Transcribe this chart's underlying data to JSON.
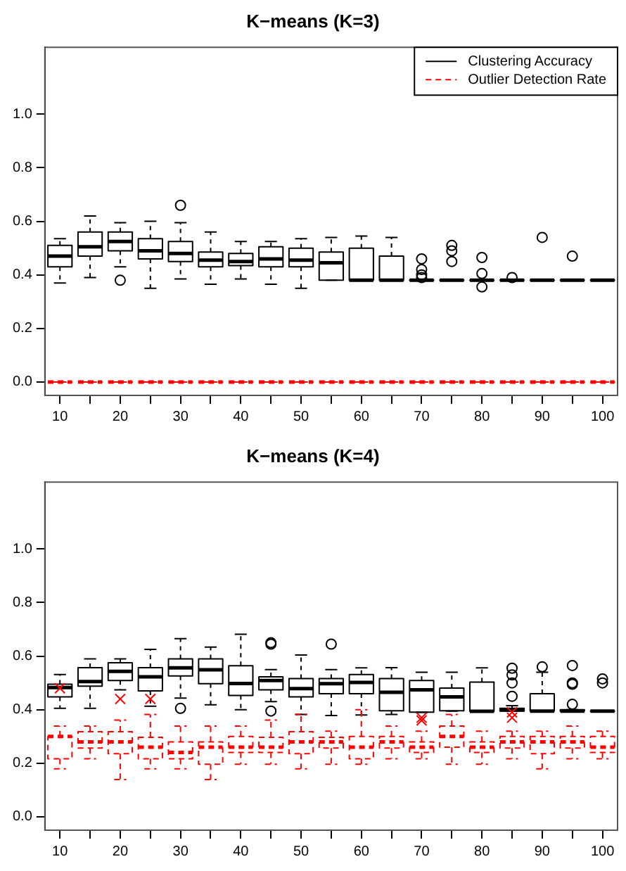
{
  "chart_data": [
    {
      "type": "box",
      "title": "K−means (K=3)",
      "categories": [
        "10",
        null,
        "20",
        null,
        "30",
        null,
        "40",
        null,
        "50",
        null,
        "60",
        null,
        "70",
        null,
        "80",
        null,
        "90",
        null,
        "100"
      ],
      "ylim": [
        -0.05,
        1.25
      ],
      "yticks": [
        {
          "value": 0,
          "label": "0.0"
        },
        {
          "value": 0.2,
          "label": "0.2"
        },
        {
          "value": 0.4,
          "label": "0.4"
        },
        {
          "value": 0.6,
          "label": "0.6"
        },
        {
          "value": 0.8,
          "label": "0.8"
        },
        {
          "value": 1,
          "label": "1.0"
        }
      ],
      "legend": "top right",
      "series": [
        {
          "name": "Clustering Accuracy",
          "color": "#000000",
          "line_style": "solid",
          "marker": "circle",
          "boxes": [
            {
              "low": 0.37,
              "q1": 0.43,
              "median": 0.47,
              "q3": 0.51,
              "high": 0.535
            },
            {
              "low": 0.39,
              "q1": 0.47,
              "median": 0.505,
              "q3": 0.56,
              "high": 0.62
            },
            {
              "low": 0.43,
              "q1": 0.49,
              "median": 0.525,
              "q3": 0.56,
              "high": 0.595,
              "outliers": [
                0.38
              ]
            },
            {
              "low": 0.35,
              "q1": 0.46,
              "median": 0.49,
              "q3": 0.535,
              "high": 0.6
            },
            {
              "low": 0.385,
              "q1": 0.45,
              "median": 0.48,
              "q3": 0.525,
              "high": 0.595,
              "outliers": [
                0.66
              ]
            },
            {
              "low": 0.365,
              "q1": 0.43,
              "median": 0.455,
              "q3": 0.485,
              "high": 0.56
            },
            {
              "low": 0.385,
              "q1": 0.435,
              "median": 0.45,
              "q3": 0.48,
              "high": 0.525
            },
            {
              "low": 0.365,
              "q1": 0.43,
              "median": 0.46,
              "q3": 0.505,
              "high": 0.525
            },
            {
              "low": 0.35,
              "q1": 0.43,
              "median": 0.455,
              "q3": 0.5,
              "high": 0.535
            },
            {
              "low": 0.38,
              "q1": 0.38,
              "median": 0.445,
              "q3": 0.485,
              "high": 0.54
            },
            {
              "low": 0.38,
              "q1": 0.38,
              "median": 0.38,
              "q3": 0.5,
              "high": 0.545
            },
            {
              "low": 0.38,
              "q1": 0.38,
              "median": 0.38,
              "q3": 0.47,
              "high": 0.54
            },
            {
              "low": 0.38,
              "q1": 0.38,
              "median": 0.38,
              "q3": 0.38,
              "high": 0.38,
              "outliers": [
                0.46,
                0.42,
                0.4,
                0.39
              ]
            },
            {
              "low": 0.38,
              "q1": 0.38,
              "median": 0.38,
              "q3": 0.38,
              "high": 0.38,
              "outliers": [
                0.51,
                0.49,
                0.45
              ]
            },
            {
              "low": 0.38,
              "q1": 0.38,
              "median": 0.38,
              "q3": 0.38,
              "high": 0.38,
              "outliers": [
                0.465,
                0.405,
                0.355
              ]
            },
            {
              "low": 0.38,
              "q1": 0.38,
              "median": 0.38,
              "q3": 0.38,
              "high": 0.38,
              "outliers": [
                0.39
              ]
            },
            {
              "low": 0.38,
              "q1": 0.38,
              "median": 0.38,
              "q3": 0.38,
              "high": 0.38,
              "outliers": [
                0.54
              ]
            },
            {
              "low": 0.38,
              "q1": 0.38,
              "median": 0.38,
              "q3": 0.38,
              "high": 0.38,
              "outliers": [
                0.47
              ]
            },
            {
              "low": 0.38,
              "q1": 0.38,
              "median": 0.38,
              "q3": 0.38,
              "high": 0.38
            }
          ]
        },
        {
          "name": "Outlier Detection Rate",
          "color": "#ff0000",
          "line_style": "dashed",
          "boxes": [
            {
              "low": 0,
              "q1": 0,
              "median": 0,
              "q3": 0,
              "high": 0
            },
            {
              "low": 0,
              "q1": 0,
              "median": 0,
              "q3": 0,
              "high": 0
            },
            {
              "low": 0,
              "q1": 0,
              "median": 0,
              "q3": 0,
              "high": 0
            },
            {
              "low": 0,
              "q1": 0,
              "median": 0,
              "q3": 0,
              "high": 0
            },
            {
              "low": 0,
              "q1": 0,
              "median": 0,
              "q3": 0,
              "high": 0
            },
            {
              "low": 0,
              "q1": 0,
              "median": 0,
              "q3": 0,
              "high": 0
            },
            {
              "low": 0,
              "q1": 0,
              "median": 0,
              "q3": 0,
              "high": 0
            },
            {
              "low": 0,
              "q1": 0,
              "median": 0,
              "q3": 0,
              "high": 0
            },
            {
              "low": 0,
              "q1": 0,
              "median": 0,
              "q3": 0,
              "high": 0
            },
            {
              "low": 0,
              "q1": 0,
              "median": 0,
              "q3": 0,
              "high": 0
            },
            {
              "low": 0,
              "q1": 0,
              "median": 0,
              "q3": 0,
              "high": 0
            },
            {
              "low": 0,
              "q1": 0,
              "median": 0,
              "q3": 0,
              "high": 0
            },
            {
              "low": 0,
              "q1": 0,
              "median": 0,
              "q3": 0,
              "high": 0
            },
            {
              "low": 0,
              "q1": 0,
              "median": 0,
              "q3": 0,
              "high": 0
            },
            {
              "low": 0,
              "q1": 0,
              "median": 0,
              "q3": 0,
              "high": 0
            },
            {
              "low": 0,
              "q1": 0,
              "median": 0,
              "q3": 0,
              "high": 0
            },
            {
              "low": 0,
              "q1": 0,
              "median": 0,
              "q3": 0,
              "high": 0
            },
            {
              "low": 0,
              "q1": 0,
              "median": 0,
              "q3": 0,
              "high": 0
            },
            {
              "low": 0,
              "q1": 0,
              "median": 0,
              "q3": 0,
              "high": 0
            }
          ]
        }
      ]
    },
    {
      "type": "box",
      "title": "K−means (K=4)",
      "categories": [
        "10",
        null,
        "20",
        null,
        "30",
        null,
        "40",
        null,
        "50",
        null,
        "60",
        null,
        "70",
        null,
        "80",
        null,
        "90",
        null,
        "100"
      ],
      "ylim": [
        -0.05,
        1.25
      ],
      "yticks": [
        {
          "value": 0,
          "label": "0.0"
        },
        {
          "value": 0.2,
          "label": "0.2"
        },
        {
          "value": 0.4,
          "label": "0.4"
        },
        {
          "value": 0.6,
          "label": "0.6"
        },
        {
          "value": 0.8,
          "label": "0.8"
        },
        {
          "value": 1,
          "label": "1.0"
        }
      ],
      "series": [
        {
          "color": "#000000",
          "line_style": "solid",
          "marker": "circle",
          "boxes": [
            {
              "low": 0.405,
              "q1": 0.448,
              "median": 0.483,
              "q3": 0.495,
              "high": 0.531
            },
            {
              "low": 0.405,
              "q1": 0.488,
              "median": 0.505,
              "q3": 0.557,
              "high": 0.59
            },
            {
              "low": 0.474,
              "q1": 0.509,
              "median": 0.543,
              "q3": 0.575,
              "high": 0.59
            },
            {
              "low": 0.413,
              "q1": 0.47,
              "median": 0.523,
              "q3": 0.557,
              "high": 0.625
            },
            {
              "low": 0.443,
              "q1": 0.526,
              "median": 0.556,
              "q3": 0.59,
              "high": 0.665,
              "outliers": [
                0.405
              ]
            },
            {
              "low": 0.418,
              "q1": 0.497,
              "median": 0.549,
              "q3": 0.59,
              "high": 0.634
            },
            {
              "low": 0.4,
              "q1": 0.453,
              "median": 0.498,
              "q3": 0.564,
              "high": 0.682
            },
            {
              "low": 0.43,
              "q1": 0.474,
              "median": 0.509,
              "q3": 0.523,
              "high": 0.55,
              "outliers": [
                0.65,
                0.645,
                0.395
              ]
            },
            {
              "low": 0.382,
              "q1": 0.448,
              "median": 0.479,
              "q3": 0.516,
              "high": 0.604
            },
            {
              "low": 0.378,
              "q1": 0.46,
              "median": 0.497,
              "q3": 0.516,
              "high": 0.55,
              "outliers": [
                0.645
              ]
            },
            {
              "low": 0.38,
              "q1": 0.46,
              "median": 0.502,
              "q3": 0.531,
              "high": 0.556
            },
            {
              "low": 0.382,
              "q1": 0.396,
              "median": 0.465,
              "q3": 0.516,
              "high": 0.557
            },
            {
              "low": 0.39,
              "q1": 0.391,
              "median": 0.474,
              "q3": 0.509,
              "high": 0.54
            },
            {
              "low": 0.395,
              "q1": 0.396,
              "median": 0.448,
              "q3": 0.481,
              "high": 0.54
            },
            {
              "low": 0.394,
              "q1": 0.394,
              "median": 0.394,
              "q3": 0.503,
              "high": 0.556
            },
            {
              "low": 0.395,
              "q1": 0.395,
              "median": 0.4,
              "q3": 0.405,
              "high": 0.415,
              "outliers": [
                0.555,
                0.53,
                0.5,
                0.45
              ]
            },
            {
              "low": 0.395,
              "q1": 0.395,
              "median": 0.395,
              "q3": 0.46,
              "high": 0.54,
              "outliers": [
                0.56
              ]
            },
            {
              "low": 0.395,
              "q1": 0.395,
              "median": 0.395,
              "q3": 0.4,
              "high": 0.4,
              "outliers": [
                0.565,
                0.5,
                0.495,
                0.42
              ]
            },
            {
              "low": 0.395,
              "q1": 0.395,
              "median": 0.395,
              "q3": 0.395,
              "high": 0.395,
              "outliers": [
                0.515,
                0.5
              ]
            }
          ]
        },
        {
          "color": "#ff0000",
          "line_style": "dashed",
          "marker": "cross",
          "boxes": [
            {
              "low": 0.179,
              "q1": 0.217,
              "median": 0.3,
              "q3": 0.3,
              "high": 0.339,
              "outliers": [
                0.48
              ]
            },
            {
              "low": 0.217,
              "q1": 0.257,
              "median": 0.28,
              "q3": 0.318,
              "high": 0.339
            },
            {
              "low": 0.139,
              "q1": 0.236,
              "median": 0.28,
              "q3": 0.318,
              "high": 0.361,
              "outliers": [
                0.44
              ]
            },
            {
              "low": 0.179,
              "q1": 0.217,
              "median": 0.26,
              "q3": 0.297,
              "high": 0.382,
              "outliers": [
                0.44
              ]
            },
            {
              "low": 0.179,
              "q1": 0.217,
              "median": 0.24,
              "q3": 0.28,
              "high": 0.339
            },
            {
              "low": 0.139,
              "q1": 0.196,
              "median": 0.26,
              "q3": 0.28,
              "high": 0.339
            },
            {
              "low": 0.196,
              "q1": 0.24,
              "median": 0.26,
              "q3": 0.3,
              "high": 0.339
            },
            {
              "low": 0.196,
              "q1": 0.24,
              "median": 0.26,
              "q3": 0.297,
              "high": 0.361
            },
            {
              "low": 0.179,
              "q1": 0.236,
              "median": 0.28,
              "q3": 0.318,
              "high": 0.382
            },
            {
              "low": 0.196,
              "q1": 0.257,
              "median": 0.28,
              "q3": 0.297,
              "high": 0.32
            },
            {
              "low": 0.196,
              "q1": 0.217,
              "median": 0.26,
              "q3": 0.3,
              "high": 0.4
            },
            {
              "low": 0.217,
              "q1": 0.257,
              "median": 0.28,
              "q3": 0.3,
              "high": 0.339
            },
            {
              "low": 0.217,
              "q1": 0.24,
              "median": 0.26,
              "q3": 0.28,
              "high": 0.32,
              "outliers": [
                0.37,
                0.36
              ]
            },
            {
              "low": 0.196,
              "q1": 0.26,
              "median": 0.3,
              "q3": 0.339,
              "high": 0.382
            },
            {
              "low": 0.196,
              "q1": 0.24,
              "median": 0.26,
              "q3": 0.28,
              "high": 0.32
            },
            {
              "low": 0.217,
              "q1": 0.257,
              "median": 0.28,
              "q3": 0.3,
              "high": 0.32,
              "outliers": [
                0.39,
                0.37
              ]
            },
            {
              "low": 0.179,
              "q1": 0.236,
              "median": 0.28,
              "q3": 0.3,
              "high": 0.32
            },
            {
              "low": 0.217,
              "q1": 0.257,
              "median": 0.28,
              "q3": 0.3,
              "high": 0.339
            },
            {
              "low": 0.217,
              "q1": 0.24,
              "median": 0.26,
              "q3": 0.3,
              "high": 0.32
            }
          ]
        }
      ]
    }
  ]
}
